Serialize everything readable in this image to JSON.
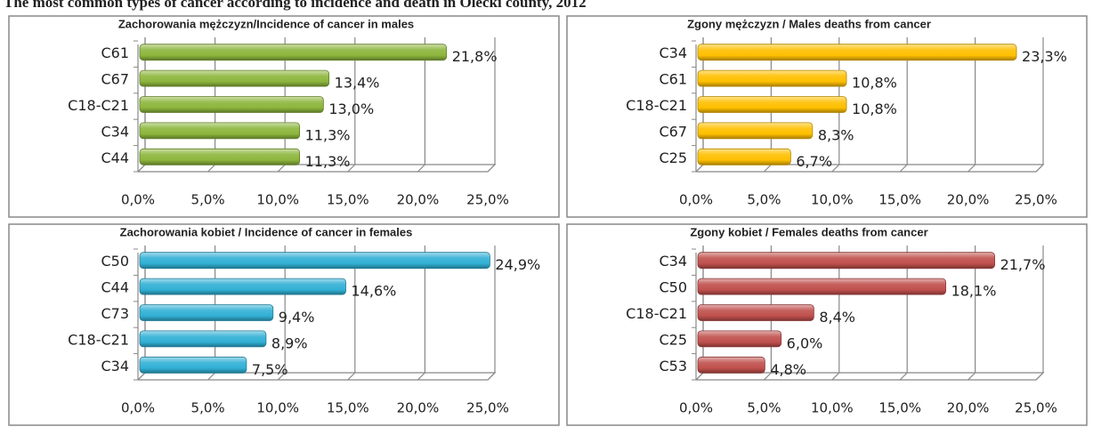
{
  "title": "The most common types of cancer according to incidence and death in Olecki county, 2012",
  "chart_data": [
    {
      "type": "bar",
      "title": "Zachorowania mężczyzn/Incidence of cancer in males",
      "categories": [
        "C61",
        "C67",
        "C18-C21",
        "C34",
        "C44"
      ],
      "values": [
        21.8,
        13.4,
        13.0,
        11.3,
        11.3
      ],
      "value_labels": [
        "21,8%",
        "13,4%",
        "13,0%",
        "11,3%",
        "11,3%"
      ],
      "color": "#8db63c",
      "xlim": [
        0,
        25
      ],
      "xticks": [
        {
          "value": 0,
          "label": "0,0%"
        },
        {
          "value": 5,
          "label": "5,0%"
        },
        {
          "value": 10,
          "label": "10,0%"
        },
        {
          "value": 15,
          "label": "15,0%"
        },
        {
          "value": 20,
          "label": "20,0%"
        },
        {
          "value": 25,
          "label": "25,0%"
        }
      ],
      "grid": true
    },
    {
      "type": "bar",
      "title": "Zgony mężczyzn / Males deaths from cancer",
      "categories": [
        "C34",
        "C61",
        "C18-C21",
        "C67",
        "C25"
      ],
      "values": [
        23.3,
        10.8,
        10.8,
        8.3,
        6.7
      ],
      "value_labels": [
        "23,3%",
        "10,8%",
        "10,8%",
        "8,3%",
        "6,7%"
      ],
      "color": "#ffc000",
      "xlim": [
        0,
        25
      ],
      "xticks": [
        {
          "value": 0,
          "label": "0,0%"
        },
        {
          "value": 5,
          "label": "5,0%"
        },
        {
          "value": 10,
          "label": "10,0%"
        },
        {
          "value": 15,
          "label": "15,0%"
        },
        {
          "value": 20,
          "label": "20,0%"
        },
        {
          "value": 25,
          "label": "25,0%"
        }
      ],
      "grid": true
    },
    {
      "type": "bar",
      "title": "Zachorowania kobiet / Incidence of cancer in females",
      "categories": [
        "C50",
        "C44",
        "C73",
        "C18-C21",
        "C34"
      ],
      "values": [
        24.9,
        14.6,
        9.4,
        8.9,
        7.5
      ],
      "value_labels": [
        "24,9%",
        "14,6%",
        "9,4%",
        "8,9%",
        "7,5%"
      ],
      "color": "#31b0d5",
      "xlim": [
        0,
        25
      ],
      "xticks": [
        {
          "value": 0,
          "label": "0,0%"
        },
        {
          "value": 5,
          "label": "5,0%"
        },
        {
          "value": 10,
          "label": "10,0%"
        },
        {
          "value": 15,
          "label": "15,0%"
        },
        {
          "value": 20,
          "label": "20,0%"
        },
        {
          "value": 25,
          "label": "25,0%"
        }
      ],
      "grid": true
    },
    {
      "type": "bar",
      "title": "Zgony kobiet / Females deaths from cancer",
      "categories": [
        "C34",
        "C50",
        "C18-C21",
        "C25",
        "C53"
      ],
      "values": [
        21.7,
        18.1,
        8.4,
        6.0,
        4.8
      ],
      "value_labels": [
        "21,7%",
        "18,1%",
        "8,4%",
        "6,0%",
        "4,8%"
      ],
      "color": "#c0504d",
      "xlim": [
        0,
        25
      ],
      "xticks": [
        {
          "value": 0,
          "label": "0,0%"
        },
        {
          "value": 5,
          "label": "5,0%"
        },
        {
          "value": 10,
          "label": "10,0%"
        },
        {
          "value": 15,
          "label": "15,0%"
        },
        {
          "value": 20,
          "label": "20,0%"
        },
        {
          "value": 25,
          "label": "25,0%"
        }
      ],
      "grid": true
    }
  ]
}
